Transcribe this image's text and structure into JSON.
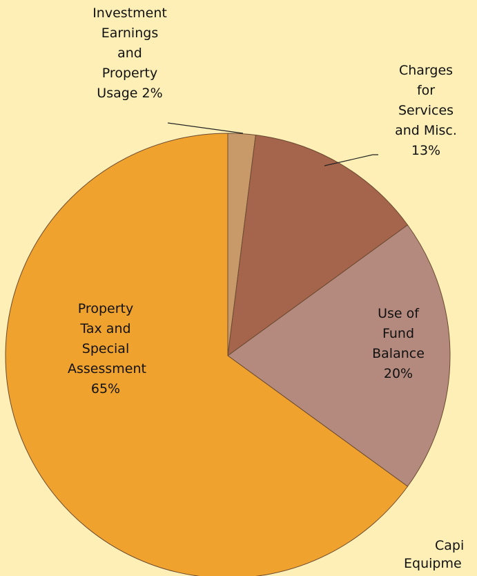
{
  "chart_data": {
    "type": "pie",
    "categories": [
      "Investment Earnings and Property Usage",
      "Charges for Services and Misc.",
      "Use of Fund Balance",
      "Property Tax and Special Assessment"
    ],
    "values": [
      2,
      13,
      20,
      65
    ],
    "value_labels": [
      "2%",
      "13%",
      "20%",
      "65%"
    ],
    "colors": [
      "#c89a6a",
      "#a5644c",
      "#b48a7e",
      "#f0a22e"
    ],
    "annotations": [
      "Capi",
      "Equipme"
    ]
  }
}
